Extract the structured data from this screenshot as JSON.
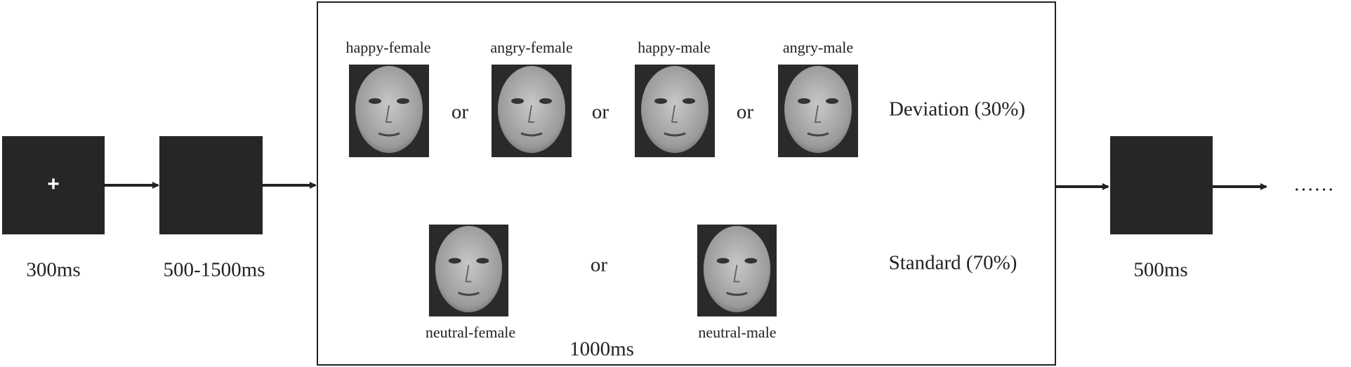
{
  "steps": [
    {
      "symbol": "+",
      "duration": "300ms"
    },
    {
      "duration": "500-1500ms"
    },
    {
      "duration": "500ms"
    }
  ],
  "stimulus": {
    "deviation": {
      "faces": [
        "happy-female",
        "angry-female",
        "happy-male",
        "angry-male"
      ],
      "label": "Deviation (30%)"
    },
    "standard": {
      "faces": [
        "neutral-female",
        "neutral-male"
      ],
      "label": "Standard (70%)"
    },
    "or": "or",
    "duration": "1000ms"
  },
  "continuation": "……"
}
